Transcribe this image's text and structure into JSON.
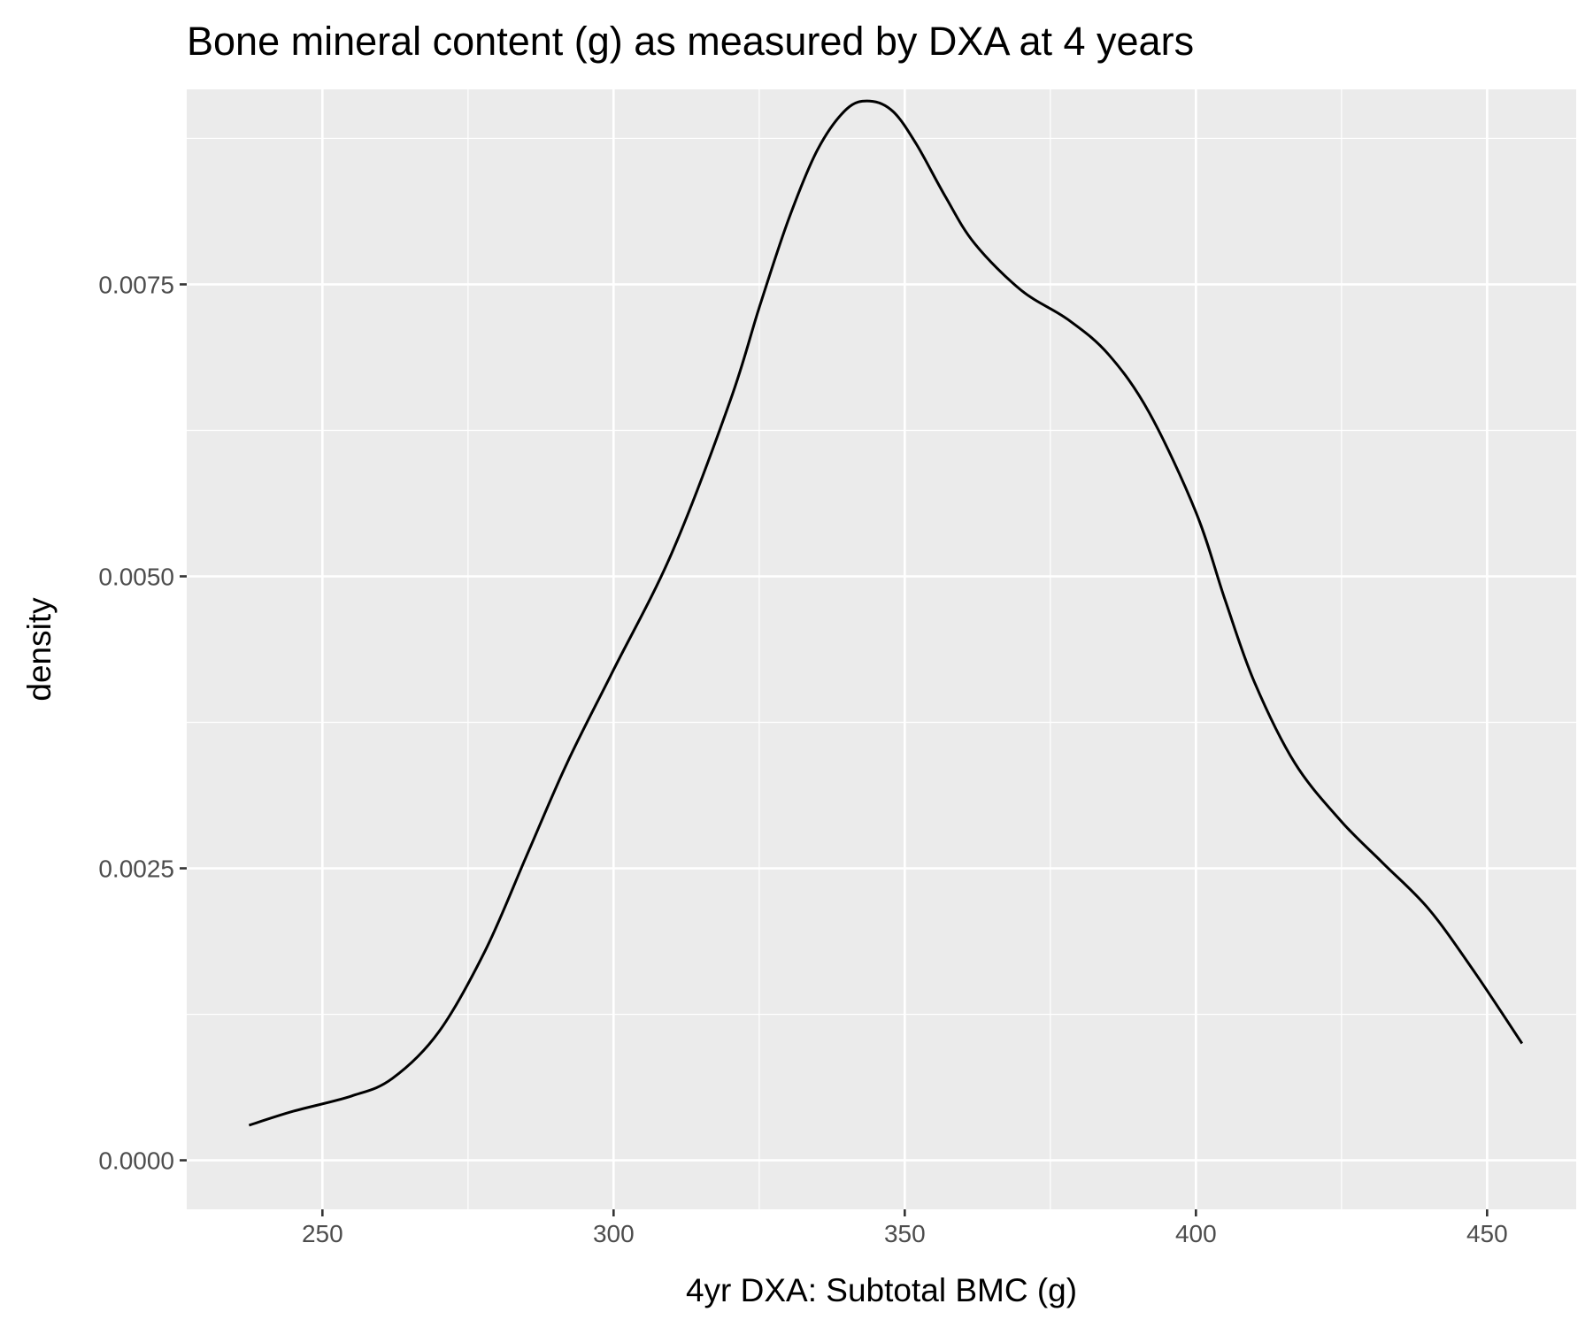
{
  "chart_data": {
    "type": "line",
    "title": "Bone mineral content (g) as measured by DXA at 4 years",
    "xlabel": "4yr DXA: Subtotal BMC (g)",
    "ylabel": "density",
    "xlim": [
      226.7,
      465.3
    ],
    "ylim": [
      -0.00042,
      0.00917
    ],
    "x_ticks": [
      250,
      300,
      350,
      400,
      450
    ],
    "x_tick_labels": [
      "250",
      "300",
      "350",
      "400",
      "450"
    ],
    "y_ticks": [
      0,
      0.0025,
      0.005,
      0.0075
    ],
    "y_tick_labels": [
      "0.0000",
      "0.0025",
      "0.0050",
      "0.0075"
    ],
    "grid": true,
    "background": "#ebebeb",
    "grid_color": "#ffffff",
    "line_color": "#000000",
    "series": [
      {
        "x": [
          237.4,
          245,
          255,
          262,
          270,
          278,
          285,
          292,
          300,
          310,
          320,
          325,
          330,
          335,
          340,
          344,
          348,
          352,
          357,
          362,
          370,
          378,
          385,
          392,
          400,
          405,
          410,
          417,
          425,
          432,
          440,
          448,
          456
        ],
        "y": [
          0.0003,
          0.00042,
          0.00055,
          0.0007,
          0.0011,
          0.0018,
          0.0026,
          0.0034,
          0.0042,
          0.0052,
          0.0065,
          0.0073,
          0.00805,
          0.00865,
          0.009,
          0.00907,
          0.00898,
          0.0087,
          0.00825,
          0.00785,
          0.00745,
          0.0072,
          0.0069,
          0.0064,
          0.00555,
          0.0048,
          0.0041,
          0.0034,
          0.0029,
          0.00255,
          0.00215,
          0.0016,
          0.001
        ]
      }
    ]
  }
}
